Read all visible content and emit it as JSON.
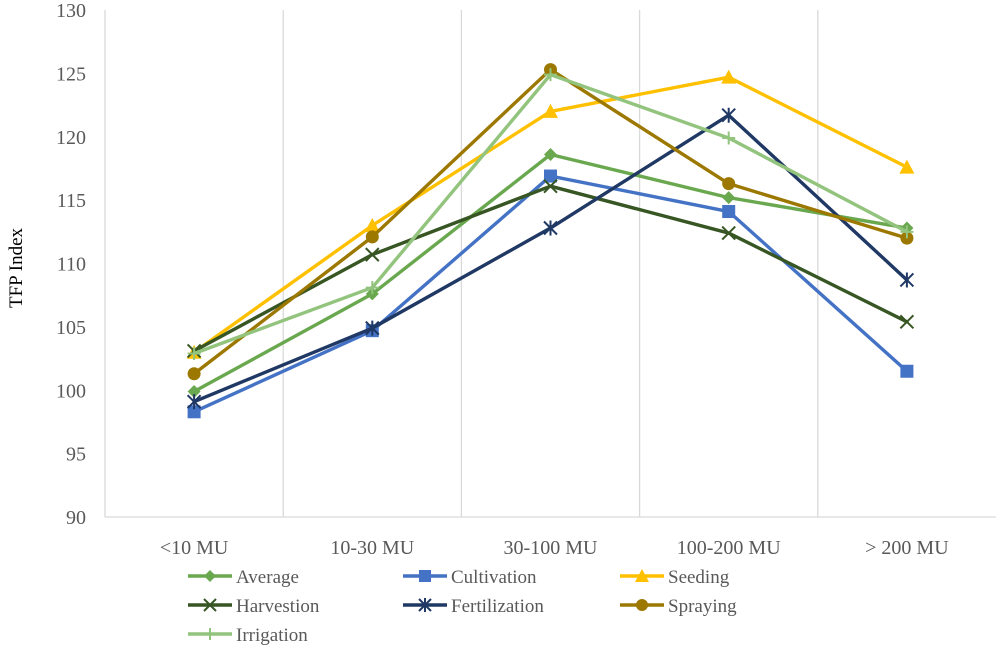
{
  "chart_data": {
    "type": "line",
    "title": "",
    "xlabel": "",
    "ylabel": "TFP Index",
    "ylim": [
      90,
      130
    ],
    "yticks": [
      "90",
      "95",
      "100",
      "105",
      "110",
      "115",
      "120",
      "125",
      "130"
    ],
    "categories": [
      "<10 MU",
      "10-30 MU",
      "30-100 MU",
      "100-200 MU",
      "> 200 MU"
    ],
    "grid": "vertical",
    "legend_position": "bottom",
    "series": [
      {
        "name": "Average",
        "values": [
          99.9,
          107.6,
          118.6,
          115.2,
          112.8
        ],
        "color": "#6aa84f",
        "marker": "diamond"
      },
      {
        "name": "Cultivation",
        "values": [
          98.3,
          104.7,
          116.9,
          114.1,
          101.5
        ],
        "color": "#4472c4",
        "marker": "square"
      },
      {
        "name": "Seeding",
        "values": [
          103.0,
          113.0,
          122.0,
          124.7,
          117.6
        ],
        "color": "#ffc000",
        "marker": "triangle"
      },
      {
        "name": "Harvestion",
        "values": [
          103.1,
          110.7,
          116.1,
          112.4,
          105.4
        ],
        "color": "#375623",
        "marker": "x"
      },
      {
        "name": "Fertilization",
        "values": [
          99.1,
          104.9,
          112.8,
          121.7,
          108.7
        ],
        "color": "#1f3864",
        "marker": "star"
      },
      {
        "name": "Spraying",
        "values": [
          101.3,
          112.1,
          125.3,
          116.3,
          112.0
        ],
        "color": "#9c7800",
        "marker": "circle"
      },
      {
        "name": "Irrigation",
        "values": [
          102.9,
          108.1,
          124.9,
          119.9,
          112.5
        ],
        "color": "#93c47d",
        "marker": "plus"
      }
    ]
  }
}
